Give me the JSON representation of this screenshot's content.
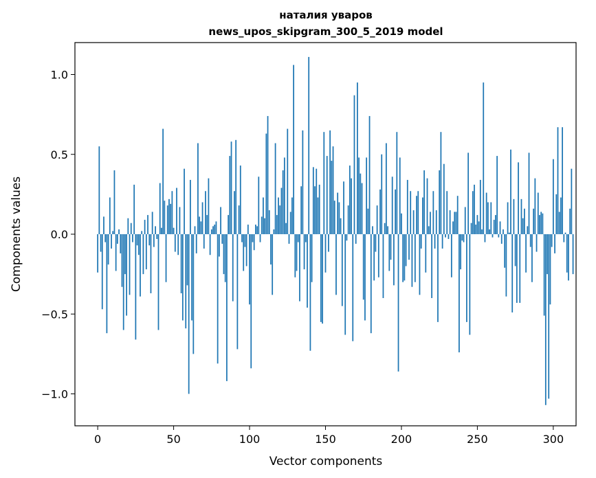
{
  "chart_data": {
    "type": "bar",
    "title": [
      "наталия уваров",
      "news_upos_skipgram_300_5_2019 model"
    ],
    "xlabel": "Vector components",
    "ylabel": "Components values",
    "xlim": [
      -15,
      315
    ],
    "ylim": [
      -1.2,
      1.2
    ],
    "xticks": [
      0,
      50,
      100,
      150,
      200,
      250,
      300
    ],
    "xtick_labels": [
      "0",
      "50",
      "100",
      "150",
      "200",
      "250",
      "300"
    ],
    "yticks": [
      -1.0,
      -0.5,
      0.0,
      0.5,
      1.0
    ],
    "ytick_labels": [
      "−1.0",
      "−0.5",
      "0.0",
      "0.5",
      "1.0"
    ],
    "bar_color": "#1f77b4",
    "categories_start": 0,
    "values": [
      -0.24,
      0.55,
      -0.11,
      -0.47,
      0.11,
      -0.05,
      -0.62,
      -0.19,
      0.23,
      -0.09,
      0.02,
      0.4,
      -0.23,
      -0.06,
      0.03,
      -0.12,
      -0.33,
      -0.6,
      -0.25,
      -0.51,
      0.1,
      -0.38,
      0.07,
      -0.05,
      0.31,
      -0.66,
      -0.07,
      -0.13,
      -0.39,
      0.02,
      -0.25,
      0.09,
      -0.22,
      0.12,
      -0.07,
      -0.37,
      0.14,
      -0.08,
      0.05,
      -0.03,
      -0.6,
      0.32,
      0.04,
      0.66,
      0.21,
      -0.3,
      0.18,
      0.22,
      0.19,
      0.27,
      0.04,
      -0.11,
      0.29,
      -0.13,
      0.17,
      -0.37,
      -0.54,
      0.41,
      -0.59,
      -0.32,
      -1.0,
      0.34,
      -0.54,
      -0.75,
      0.05,
      -0.12,
      0.57,
      0.11,
      0.08,
      0.2,
      -0.09,
      0.27,
      0.12,
      0.35,
      -0.13,
      0.03,
      0.05,
      0.06,
      0.08,
      -0.81,
      -0.14,
      0.17,
      -0.06,
      -0.25,
      -0.3,
      -0.92,
      0.12,
      0.49,
      0.58,
      -0.42,
      0.27,
      0.59,
      -0.72,
      0.18,
      0.43,
      -0.05,
      -0.23,
      -0.08,
      -0.2,
      0.06,
      -0.44,
      -0.84,
      -0.05,
      -0.1,
      0.06,
      0.05,
      0.36,
      -0.05,
      0.11,
      0.23,
      0.1,
      0.63,
      0.74,
      0.15,
      -0.19,
      -0.38,
      0.03,
      0.57,
      0.12,
      0.23,
      0.18,
      0.29,
      0.4,
      0.48,
      0.07,
      0.66,
      -0.06,
      0.14,
      0.23,
      1.06,
      -0.27,
      -0.23,
      -0.05,
      -0.42,
      0.3,
      0.65,
      -0.22,
      -0.05,
      -0.46,
      1.11,
      -0.73,
      -0.3,
      0.42,
      0.3,
      0.41,
      0.23,
      0.31,
      -0.55,
      -0.56,
      0.64,
      -0.24,
      0.49,
      -0.11,
      0.65,
      0.46,
      0.55,
      0.21,
      -0.38,
      0.26,
      0.2,
      0.1,
      -0.45,
      0.33,
      -0.63,
      -0.04,
      0.18,
      0.43,
      0.35,
      -0.67,
      0.87,
      -0.06,
      0.95,
      0.48,
      0.38,
      0.32,
      -0.41,
      -0.54,
      0.48,
      0.16,
      0.74,
      -0.62,
      0.05,
      -0.29,
      -0.11,
      0.18,
      -0.27,
      0.28,
      0.5,
      -0.4,
      0.07,
      0.57,
      0.05,
      -0.23,
      -0.16,
      0.36,
      -0.32,
      0.28,
      0.64,
      -0.86,
      0.48,
      0.13,
      -0.3,
      -0.29,
      -0.2,
      0.34,
      -0.16,
      0.27,
      -0.33,
      0.15,
      -0.3,
      0.24,
      0.27,
      -0.38,
      -0.09,
      0.23,
      0.4,
      -0.24,
      0.35,
      0.05,
      0.14,
      -0.4,
      0.27,
      -0.09,
      0.15,
      -0.55,
      0.4,
      0.64,
      -0.09,
      0.44,
      -0.02,
      0.27,
      -0.03,
      0.15,
      -0.27,
      0.08,
      0.14,
      0.14,
      0.24,
      -0.74,
      -0.22,
      -0.04,
      -0.05,
      0.17,
      -0.55,
      0.51,
      -0.63,
      0.07,
      0.27,
      0.31,
      0.06,
      0.12,
      0.08,
      0.34,
      0.03,
      0.95,
      -0.05,
      0.26,
      0.2,
      0.03,
      0.2,
      -0.02,
      0.09,
      0.12,
      0.49,
      -0.02,
      0.08,
      -0.06,
      0.03,
      -0.21,
      -0.39,
      0.2,
      0.01,
      0.53,
      -0.49,
      0.22,
      -0.2,
      -0.43,
      0.45,
      -0.43,
      0.22,
      0.1,
      0.16,
      -0.24,
      0.05,
      0.51,
      -0.08,
      -0.3,
      0.16,
      0.35,
      -0.11,
      0.26,
      0.12,
      0.14,
      0.13,
      -0.51,
      -1.07,
      -0.25,
      -1.03,
      -0.44,
      -0.08,
      0.47,
      -0.12,
      0.25,
      0.67,
      0.14,
      0.23,
      0.67,
      -0.05,
      0.01,
      -0.24,
      -0.29,
      0.16,
      0.41,
      -0.25
    ]
  }
}
